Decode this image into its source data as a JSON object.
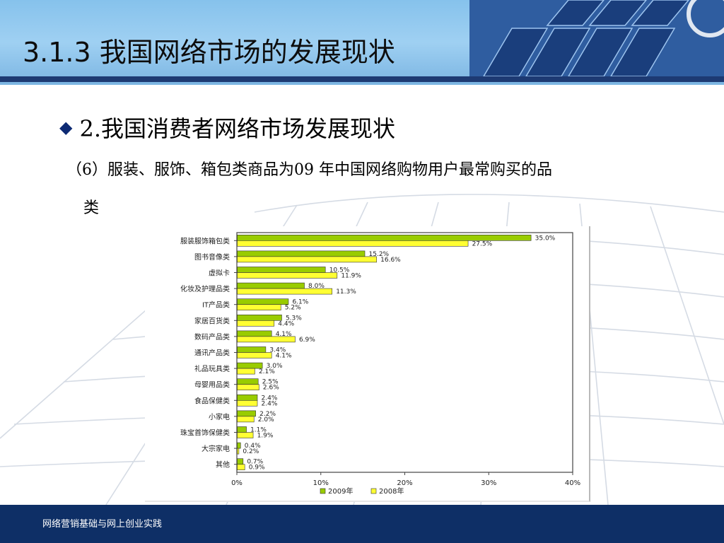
{
  "slide": {
    "title": "3.1.3 我国网络市场的发展现状",
    "bullet_icon": "diamond-bullet-icon",
    "bullet_text": "2.我国消费者网络市场发展现状",
    "description_line1": "（6）服装、服饰、箱包类商品为09 年中国网络购物用户最常购买的品",
    "description_line2": "类",
    "footer_text": "网络营销基础与网上创业实践"
  },
  "colors": {
    "header_band": "#86c2ec",
    "header_rule": "#1d3a73",
    "footer_band": "#0e2f66",
    "bullet": "#0d2a73",
    "series_2009": "#99cc00",
    "series_2008": "#ffff33"
  },
  "chart_data": {
    "type": "bar",
    "orientation": "horizontal",
    "categories": [
      "服装服饰箱包类",
      "图书音像类",
      "虚拟卡",
      "化妆及护理品类",
      "IT产品类",
      "家居百货类",
      "数码产品类",
      "通讯产品类",
      "礼品玩具类",
      "母婴用品类",
      "食品保健类",
      "小家电",
      "珠宝首饰保健类",
      "大宗家电",
      "其他"
    ],
    "series": [
      {
        "name": "2009年",
        "values": [
          35.0,
          15.2,
          10.5,
          8.0,
          6.1,
          5.3,
          4.1,
          3.4,
          3.0,
          2.5,
          2.4,
          2.2,
          1.1,
          0.4,
          0.7
        ],
        "labels": [
          "35.0%",
          "15.2%",
          "10.5%",
          "8.0%",
          "6.1%",
          "5.3%",
          "4.1%",
          "3.4%",
          "3.0%",
          "2.5%",
          "2.4%",
          "2.2%",
          "1.1%",
          "0.4%",
          "0.7%"
        ],
        "color": "#99cc00"
      },
      {
        "name": "2008年",
        "values": [
          27.5,
          16.6,
          11.9,
          11.3,
          5.2,
          4.4,
          6.9,
          4.1,
          2.1,
          2.6,
          2.4,
          2.0,
          1.9,
          0.2,
          0.9
        ],
        "labels": [
          "27.5%",
          "16.6%",
          "11.9%",
          "11.3%",
          "5.2%",
          "4.4%",
          "6.9%",
          "4.1%",
          "2.1%",
          "2.6%",
          "2.4%",
          "2.0%",
          "1.9%",
          "0.2%",
          "0.9%"
        ],
        "color": "#ffff33"
      }
    ],
    "xlim": [
      0,
      40
    ],
    "xticks": [
      0,
      10,
      20,
      30,
      40
    ],
    "xtick_labels": [
      "0%",
      "10%",
      "20%",
      "30%",
      "40%"
    ],
    "grid": false,
    "legend_position": "bottom"
  }
}
